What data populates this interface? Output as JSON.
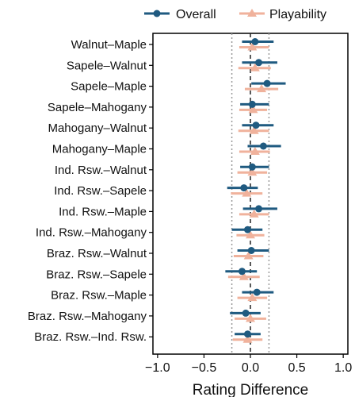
{
  "chart_data": {
    "type": "forest",
    "xlabel": "Rating Difference",
    "xlim": [
      -1.05,
      1.05
    ],
    "xticks": [
      -1.0,
      -0.5,
      0.0,
      0.5,
      1.0
    ],
    "xtick_labels": [
      "−1.0",
      "−0.5",
      "0.0",
      "0.5",
      "1.0"
    ],
    "reference_lines": {
      "dotted": [
        -0.2,
        0.2
      ],
      "dashed": [
        0.0
      ]
    },
    "legend": {
      "placement": "top"
    },
    "categories": [
      "Walnut–Maple",
      "Sapele–Walnut",
      "Sapele–Maple",
      "Sapele–Mahogany",
      "Mahogany–Walnut",
      "Mahogany–Maple",
      "Ind. Rsw.–Walnut",
      "Ind. Rsw.–Sapele",
      "Ind. Rsw.–Maple",
      "Ind. Rsw.–Mahogany",
      "Braz. Rsw.–Walnut",
      "Braz. Rsw.–Sapele",
      "Braz. Rsw.–Maple",
      "Braz. Rsw.–Mahogany",
      "Braz. Rsw.–Ind. Rsw."
    ],
    "series": [
      {
        "name": "Overall",
        "color": "#1f5a80",
        "marker": "circle",
        "estimate": [
          0.05,
          0.09,
          0.18,
          0.02,
          0.06,
          0.14,
          0.02,
          -0.07,
          0.09,
          -0.03,
          0.01,
          -0.09,
          0.07,
          -0.05,
          -0.03
        ],
        "lower": [
          -0.09,
          -0.09,
          0.01,
          -0.11,
          -0.09,
          -0.03,
          -0.11,
          -0.25,
          -0.08,
          -0.2,
          -0.14,
          -0.27,
          -0.09,
          -0.22,
          -0.17
        ],
        "upper": [
          0.25,
          0.29,
          0.38,
          0.2,
          0.25,
          0.33,
          0.2,
          0.08,
          0.29,
          0.13,
          0.2,
          0.07,
          0.25,
          0.11,
          0.11
        ]
      },
      {
        "name": "Playability",
        "color": "#f0b29c",
        "marker": "triangle",
        "estimate": [
          0.02,
          0.05,
          0.12,
          0.03,
          0.04,
          0.05,
          0.02,
          -0.04,
          0.04,
          0.0,
          -0.02,
          -0.07,
          0.02,
          0.0,
          -0.03
        ],
        "lower": [
          -0.12,
          -0.13,
          -0.06,
          -0.12,
          -0.13,
          -0.12,
          -0.14,
          -0.21,
          -0.12,
          -0.15,
          -0.18,
          -0.24,
          -0.14,
          -0.17,
          -0.19
        ],
        "upper": [
          0.2,
          0.22,
          0.3,
          0.18,
          0.2,
          0.21,
          0.18,
          0.13,
          0.2,
          0.15,
          0.14,
          0.1,
          0.18,
          0.17,
          0.13
        ]
      }
    ]
  }
}
